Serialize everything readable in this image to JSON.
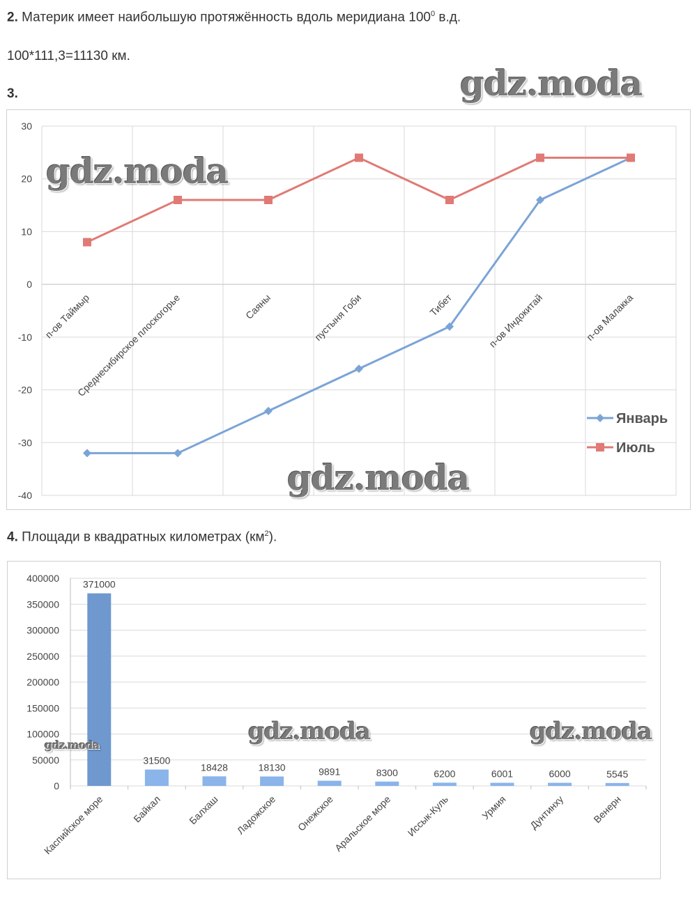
{
  "task2": {
    "number": "2.",
    "text": "Материк имеет наибольшую протяжённость вдоль меридиана 100",
    "degree": "0",
    "suffix": " в.д."
  },
  "calc": {
    "text": "100*111,3=11130 км."
  },
  "task3": {
    "number": "3."
  },
  "task4": {
    "number": "4.",
    "text": "Площади в квадратных километрах (км",
    "sup": "2",
    "suffix": ")."
  },
  "watermark_text": "gdz.moda",
  "watermark_small": "gdz.moda",
  "colors": {
    "january": "#7ba4d6",
    "july": "#e07a74",
    "bar": "#8ab4ea",
    "bar_dark": "#6f98cf",
    "grid": "#d9d9d9",
    "text": "#333333"
  },
  "chart_data": [
    {
      "type": "line",
      "title": "",
      "xlabel": "",
      "ylabel": "",
      "categories": [
        "п-ов Таймыр",
        "Среднесибирское плоскогорье",
        "Саяны",
        "пустыня Гоби",
        "Тибет",
        "п-ов Индокитай",
        "п-ов Малакка"
      ],
      "series": [
        {
          "name": "Январь",
          "values": [
            -32,
            -32,
            -24,
            -16,
            -8,
            16,
            24
          ],
          "marker": "diamond",
          "color": "#7ba4d6"
        },
        {
          "name": "Июль",
          "values": [
            8,
            16,
            16,
            24,
            16,
            24,
            24
          ],
          "marker": "square",
          "color": "#e07a74"
        }
      ],
      "ylim": [
        -40,
        30
      ],
      "yticks": [
        "30",
        "20",
        "10",
        "0",
        "-10",
        "-20",
        "-30",
        "-40"
      ],
      "grid": true,
      "legend": "right"
    },
    {
      "type": "bar",
      "title": "",
      "xlabel": "",
      "ylabel": "",
      "categories": [
        "Каспийское море",
        "Байкал",
        "Балхаш",
        "Ладожское",
        "Онежское",
        "Аральское море",
        "Иссык-Куль",
        "Урмия",
        "Дунтинху",
        "Венерн"
      ],
      "values": [
        371000,
        31500,
        18428,
        18130,
        9891,
        8300,
        6200,
        6001,
        6000,
        5545
      ],
      "data_labels": [
        "371000",
        "31500",
        "18428",
        "18130",
        "9891",
        "8300",
        "6200",
        "6001",
        "6000",
        "5545"
      ],
      "ylim": [
        0,
        400000
      ],
      "yticks": [
        "400000",
        "350000",
        "300000",
        "250000",
        "200000",
        "150000",
        "100000",
        "50000",
        "0"
      ],
      "grid": true
    }
  ]
}
